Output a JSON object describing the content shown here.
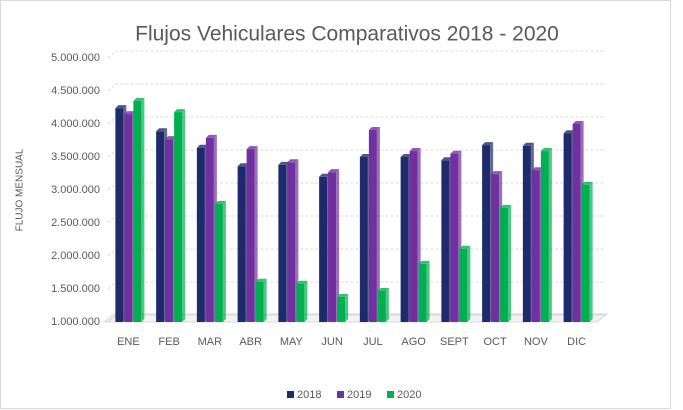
{
  "chart_data": {
    "type": "bar",
    "title": "Flujos Vehiculares Comparativos 2018 - 2020",
    "y_label": "FLUJO MENSUAL",
    "categories": [
      "ENE",
      "FEB",
      "MAR",
      "ABR",
      "MAY",
      "JUN",
      "JUL",
      "AGO",
      "SEPT",
      "OCT",
      "NOV",
      "DIC"
    ],
    "series": [
      {
        "name": "2018",
        "color": "#1f2a6b",
        "values": [
          4240000,
          3890000,
          3640000,
          3360000,
          3380000,
          3200000,
          3500000,
          3500000,
          3450000,
          3680000,
          3670000,
          3860000
        ]
      },
      {
        "name": "2019",
        "color": "#7030a0",
        "values": [
          4150000,
          3770000,
          3790000,
          3620000,
          3420000,
          3270000,
          3910000,
          3590000,
          3550000,
          3240000,
          3300000,
          4000000
        ]
      },
      {
        "name": "2020",
        "color": "#00b050",
        "values": [
          4350000,
          4180000,
          2790000,
          1610000,
          1580000,
          1380000,
          1470000,
          1880000,
          2110000,
          2730000,
          3590000,
          3080000
        ]
      }
    ],
    "ylim": [
      1000000,
      5000000
    ],
    "yticks": [
      {
        "value": 1000000,
        "label": "1.000.000"
      },
      {
        "value": 1500000,
        "label": "1.500.000"
      },
      {
        "value": 2000000,
        "label": "2.000.000"
      },
      {
        "value": 2500000,
        "label": "2.500.000"
      },
      {
        "value": 3000000,
        "label": "3.000.000"
      },
      {
        "value": 3500000,
        "label": "3.500.000"
      },
      {
        "value": 4000000,
        "label": "4.000.000"
      },
      {
        "value": 4500000,
        "label": "4.500.000"
      },
      {
        "value": 5000000,
        "label": "5.000.000"
      }
    ],
    "grid": true,
    "legend": "bottom"
  }
}
